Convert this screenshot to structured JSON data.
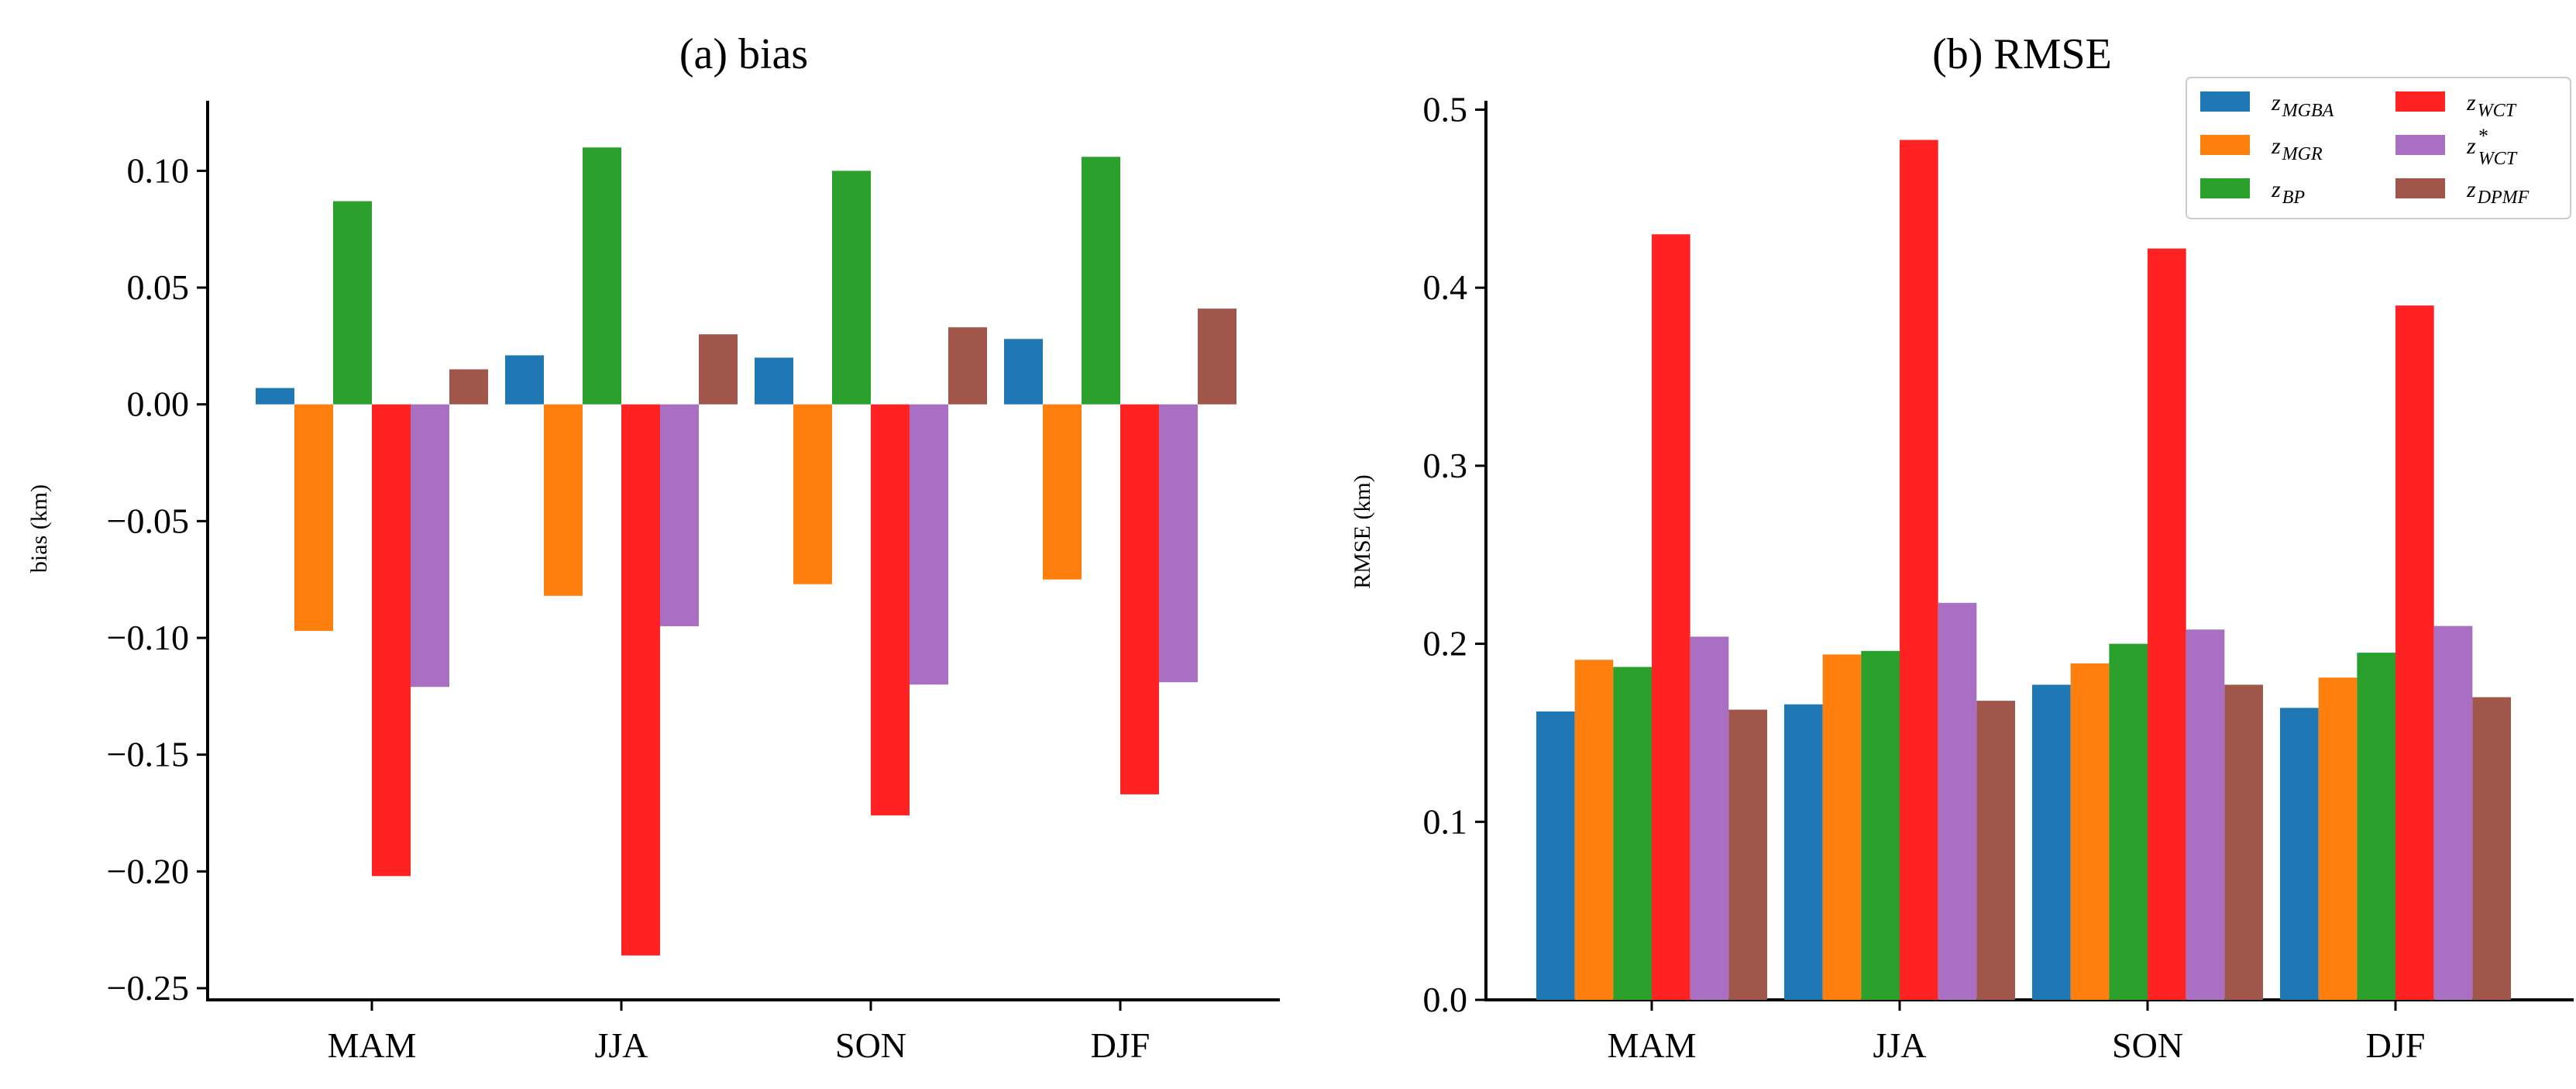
{
  "chart_data": [
    {
      "type": "bar",
      "title": "(a) bias",
      "xlabel": "",
      "ylabel": "bias (km)",
      "ylim": [
        -0.255,
        0.13
      ],
      "yticks": [
        0.1,
        0.05,
        0.0,
        -0.05,
        -0.1,
        -0.15,
        -0.2,
        -0.25
      ],
      "ytick_labels": [
        "0.10",
        "0.05",
        "0.00",
        "−0.05",
        "−0.10",
        "−0.15",
        "−0.20",
        "−0.25"
      ],
      "categories": [
        "MAM",
        "JJA",
        "SON",
        "DJF"
      ],
      "series": [
        {
          "name": "z_MGBA",
          "color": "#1f77b4",
          "values": [
            0.007,
            0.021,
            0.02,
            0.028
          ]
        },
        {
          "name": "z_MGR",
          "color": "#ff7f0e",
          "values": [
            -0.097,
            -0.082,
            -0.077,
            -0.075
          ]
        },
        {
          "name": "z_BP",
          "color": "#2ca02c",
          "values": [
            0.087,
            0.11,
            0.1,
            0.106
          ]
        },
        {
          "name": "z_WCT",
          "color": "#ff2222",
          "values": [
            -0.202,
            -0.236,
            -0.176,
            -0.167
          ]
        },
        {
          "name": "z*_WCT",
          "color": "#a86fc2",
          "values": [
            -0.121,
            -0.095,
            -0.12,
            -0.119
          ]
        },
        {
          "name": "z_DPMF",
          "color": "#a0564a",
          "values": [
            0.015,
            0.03,
            0.033,
            0.041
          ]
        }
      ],
      "legend": null
    },
    {
      "type": "bar",
      "title": "(b) RMSE",
      "xlabel": "",
      "ylabel": "RMSE (km)",
      "ylim": [
        0.0,
        0.505
      ],
      "yticks": [
        0.0,
        0.1,
        0.2,
        0.3,
        0.4,
        0.5
      ],
      "ytick_labels": [
        "0.0",
        "0.1",
        "0.2",
        "0.3",
        "0.4",
        "0.5"
      ],
      "categories": [
        "MAM",
        "JJA",
        "SON",
        "DJF"
      ],
      "series": [
        {
          "name": "z_MGBA",
          "color": "#1f77b4",
          "values": [
            0.162,
            0.166,
            0.177,
            0.164
          ]
        },
        {
          "name": "z_MGR",
          "color": "#ff7f0e",
          "values": [
            0.191,
            0.194,
            0.189,
            0.181
          ]
        },
        {
          "name": "z_BP",
          "color": "#2ca02c",
          "values": [
            0.187,
            0.196,
            0.2,
            0.195
          ]
        },
        {
          "name": "z_WCT",
          "color": "#ff2222",
          "values": [
            0.43,
            0.483,
            0.422,
            0.39
          ]
        },
        {
          "name": "z*_WCT",
          "color": "#a86fc2",
          "values": [
            0.204,
            0.223,
            0.208,
            0.21
          ]
        },
        {
          "name": "z_DPMF",
          "color": "#a0564a",
          "values": [
            0.163,
            0.168,
            0.177,
            0.17
          ]
        }
      ],
      "legend": {
        "placement": "top-right",
        "entries": [
          {
            "base": "z",
            "sub": "MGBA",
            "sup": "",
            "color": "#1f77b4"
          },
          {
            "base": "z",
            "sub": "WCT",
            "sup": "",
            "color": "#ff2222"
          },
          {
            "base": "z",
            "sub": "MGR",
            "sup": "",
            "color": "#ff7f0e"
          },
          {
            "base": "z",
            "sub": "WCT",
            "sup": "*",
            "color": "#a86fc2"
          },
          {
            "base": "z",
            "sub": "BP",
            "sup": "",
            "color": "#2ca02c"
          },
          {
            "base": "z",
            "sub": "DPMF",
            "sup": "",
            "color": "#a0564a"
          }
        ]
      }
    }
  ]
}
